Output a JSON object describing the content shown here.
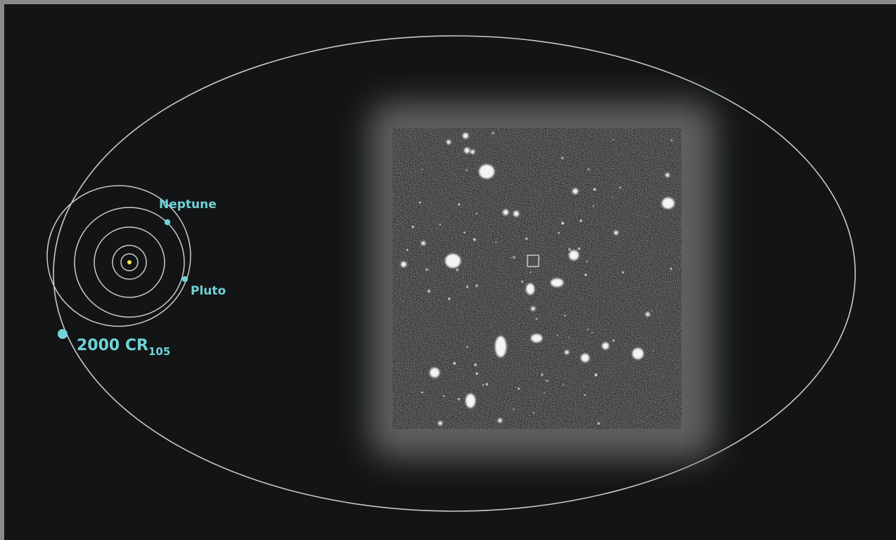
{
  "labels": {
    "neptune": "Neptune",
    "pluto": "Pluto",
    "object_main": "2000 CR",
    "object_sub": "105"
  },
  "colors": {
    "background": "#121416",
    "orbit_line": "#c8cbcc",
    "label_accent": "#6fd3d6",
    "sun": "#f2e84b",
    "photo_bg": "#262829",
    "glow": "#5a5a5a"
  },
  "icons": {
    "sun": "sun-icon",
    "target_marker": "target-box-icon"
  }
}
